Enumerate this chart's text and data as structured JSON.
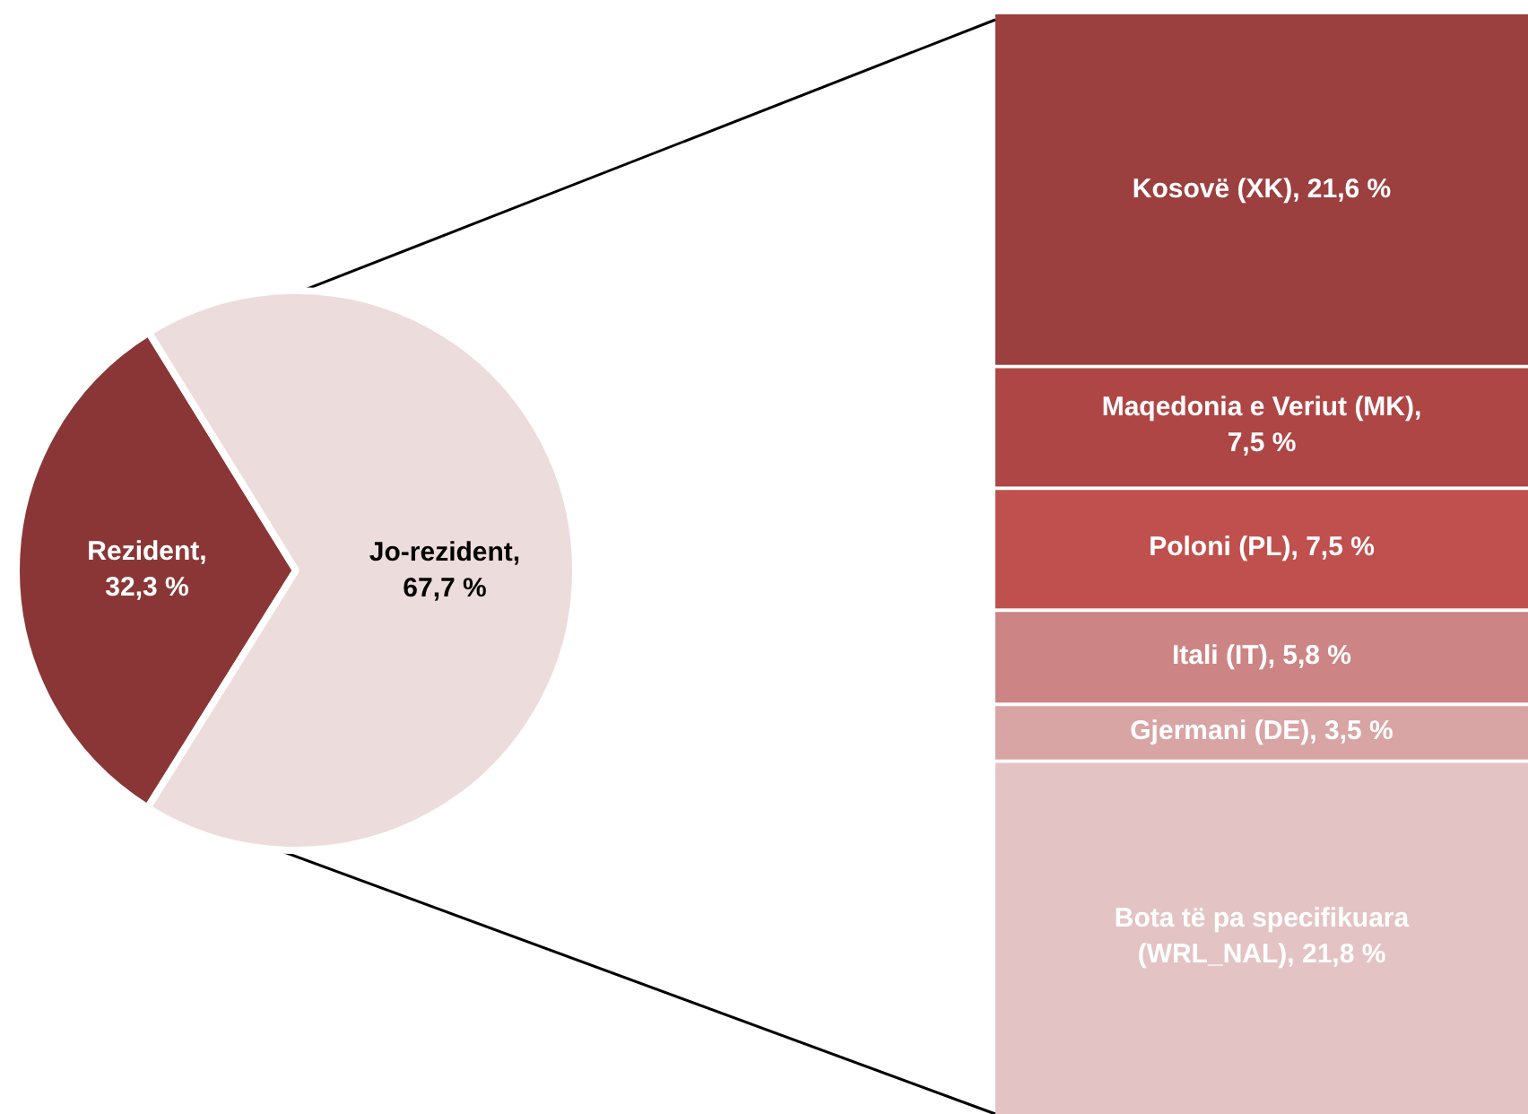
{
  "chart_data": [
    {
      "type": "pie",
      "categories": [
        "Rezident",
        "Jo-rezident"
      ],
      "values": [
        32.3,
        67.7
      ],
      "colors": [
        "#8b3636",
        "#ecdcdb"
      ],
      "value_labels": [
        ", 32,3 %",
        ", 67,7 %"
      ]
    },
    {
      "type": "bar",
      "stacked": true,
      "categories": [
        null
      ],
      "series": [
        {
          "name": "Bota të pa specifikuara (WRL_NAL),",
          "color": "#e3c3c3",
          "values": [
            21.8
          ],
          "value_labels": [
            "21,8 %"
          ]
        },
        {
          "name": "Gjermani (DE),",
          "color": "#d8a4a4",
          "values": [
            3.5
          ],
          "value_labels": [
            "3,5 %"
          ]
        },
        {
          "name": "Itali (IT),",
          "color": "#cc8584",
          "values": [
            5.8
          ],
          "value_labels": [
            "5,8 %"
          ]
        },
        {
          "name": "Poloni (PL),",
          "color": "#c0504d",
          "values": [
            7.5
          ],
          "value_labels": [
            "7,5 %"
          ]
        },
        {
          "name": "Maqedonia e Veriut (MK),",
          "color": "#ae4645",
          "values": [
            7.5
          ],
          "value_labels": [
            "7,5 %"
          ]
        },
        {
          "name": "Kosovë (XK),",
          "color": "#9c3f3f",
          "values": [
            21.6
          ],
          "value_labels": [
            "21,6 %"
          ]
        }
      ]
    }
  ]
}
